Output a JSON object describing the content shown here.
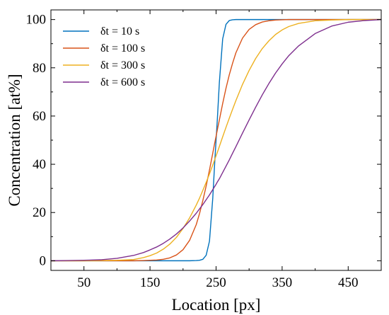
{
  "chart_data": {
    "type": "line",
    "xlabel": "Location [px]",
    "ylabel": "Concentration [at%]",
    "xlim": [
      0,
      500
    ],
    "ylim": [
      -4,
      104
    ],
    "xticks": [
      50,
      150,
      250,
      350,
      450
    ],
    "xticks_minor": [
      100,
      200,
      300,
      400
    ],
    "yticks": [
      0,
      20,
      40,
      60,
      80,
      100
    ],
    "yticks_minor": [
      10,
      30,
      50,
      70,
      90
    ],
    "grid": false,
    "legend_position": "top-left",
    "x": [
      0,
      25,
      50,
      75,
      100,
      125,
      140,
      150,
      160,
      170,
      180,
      190,
      200,
      210,
      220,
      225,
      230,
      235,
      240,
      245,
      248,
      250,
      252,
      255,
      260,
      265,
      270,
      275,
      280,
      290,
      300,
      310,
      320,
      330,
      340,
      350,
      360,
      375,
      400,
      425,
      450,
      475,
      500
    ],
    "series": [
      {
        "name": "δt = 10 s",
        "color": "#0072BD",
        "values": [
          0,
          0,
          0,
          0,
          0,
          0,
          0,
          0,
          0,
          0,
          0,
          0,
          0,
          0,
          0.1,
          0.2,
          0.6,
          2.3,
          8.1,
          26,
          41,
          50,
          59,
          74,
          92,
          98,
          99.6,
          99.9,
          100,
          100,
          100,
          100,
          100,
          100,
          100,
          100,
          100,
          100,
          100,
          100,
          100,
          100,
          100
        ]
      },
      {
        "name": "δt = 100 s",
        "color": "#D95319",
        "values": [
          0,
          0,
          0,
          0,
          0,
          0,
          0.1,
          0.2,
          0.3,
          0.6,
          1.2,
          2.4,
          4.6,
          8.5,
          15,
          19.6,
          25,
          31,
          37.6,
          44.6,
          48.9,
          51.6,
          54.4,
          58.4,
          65.2,
          71.5,
          77.1,
          81.9,
          86.2,
          92.3,
          95.9,
          97.9,
          99.0,
          99.5,
          99.8,
          99.9,
          100,
          100,
          100,
          100,
          100,
          100,
          100
        ]
      },
      {
        "name": "δt = 300 s",
        "color": "#EDB120",
        "values": [
          0,
          0,
          0,
          0.1,
          0.2,
          0.5,
          1.3,
          2.1,
          3.2,
          4.8,
          6.9,
          9.7,
          13.4,
          17.8,
          23.1,
          26.0,
          29.2,
          32.5,
          36.0,
          39.7,
          42.0,
          43.5,
          45.0,
          47.4,
          51.4,
          55.3,
          59.1,
          62.8,
          66.4,
          73.1,
          78.9,
          83.9,
          88.0,
          91.2,
          93.8,
          95.7,
          97.1,
          98.4,
          99.5,
          99.8,
          100,
          100,
          100
        ]
      },
      {
        "name": "δt = 600 s",
        "color": "#7E2F8E",
        "values": [
          0,
          0.1,
          0.2,
          0.4,
          1.0,
          2.2,
          3.4,
          4.5,
          5.7,
          7.2,
          9.0,
          11.1,
          13.6,
          16.5,
          19.7,
          21.5,
          23.3,
          25.3,
          27.3,
          29.5,
          30.8,
          31.7,
          32.7,
          34.0,
          36.6,
          39.2,
          41.8,
          44.6,
          47.3,
          52.9,
          58.4,
          63.7,
          68.8,
          73.5,
          77.8,
          81.6,
          85.0,
          89.1,
          94.2,
          97.3,
          98.9,
          99.6,
          100
        ]
      }
    ]
  }
}
